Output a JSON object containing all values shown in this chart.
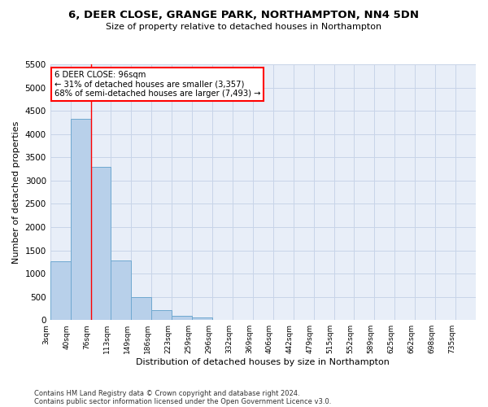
{
  "title": "6, DEER CLOSE, GRANGE PARK, NORTHAMPTON, NN4 5DN",
  "subtitle": "Size of property relative to detached houses in Northampton",
  "xlabel": "Distribution of detached houses by size in Northampton",
  "ylabel": "Number of detached properties",
  "footnote1": "Contains HM Land Registry data © Crown copyright and database right 2024.",
  "footnote2": "Contains public sector information licensed under the Open Government Licence v3.0.",
  "bar_labels": [
    "3sqm",
    "40sqm",
    "76sqm",
    "113sqm",
    "149sqm",
    "186sqm",
    "223sqm",
    "259sqm",
    "296sqm",
    "332sqm",
    "369sqm",
    "406sqm",
    "442sqm",
    "479sqm",
    "515sqm",
    "552sqm",
    "589sqm",
    "625sqm",
    "662sqm",
    "698sqm",
    "735sqm"
  ],
  "bar_values": [
    1270,
    4330,
    3300,
    1280,
    490,
    215,
    90,
    55,
    0,
    0,
    0,
    0,
    0,
    0,
    0,
    0,
    0,
    0,
    0,
    0,
    0
  ],
  "bar_color": "#b8d0ea",
  "bar_edge_color": "#6fa8d0",
  "red_line_x": 2,
  "annotation_line1": "6 DEER CLOSE: 96sqm",
  "annotation_line2": "← 31% of detached houses are smaller (3,357)",
  "annotation_line3": "68% of semi-detached houses are larger (7,493) →",
  "annotation_box_color": "white",
  "annotation_box_edge": "red",
  "ylim": [
    0,
    5500
  ],
  "yticks": [
    0,
    500,
    1000,
    1500,
    2000,
    2500,
    3000,
    3500,
    4000,
    4500,
    5000,
    5500
  ],
  "grid_color": "#c8d4e8",
  "bg_color": "#e8eef8",
  "fig_width": 6.0,
  "fig_height": 5.0,
  "dpi": 100
}
